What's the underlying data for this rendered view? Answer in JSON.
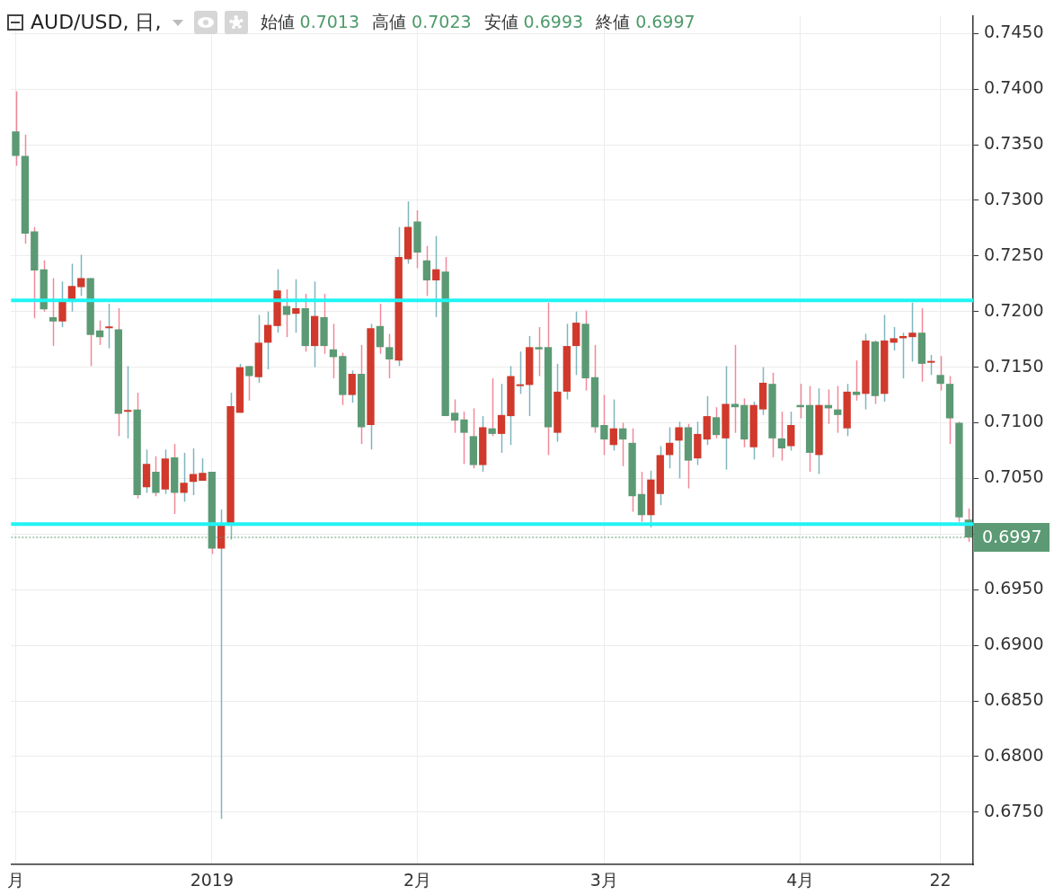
{
  "chart_data": {
    "type": "candlestick",
    "title": "AUD/USD, 日,",
    "annotations": [
      "始値 0.7013",
      "高値 0.7023",
      "安値 0.6993",
      "終値 0.6997"
    ],
    "categories": [
      "月",
      null,
      null,
      null,
      null,
      null,
      null,
      null,
      null,
      null,
      null,
      null,
      null,
      null,
      null,
      null,
      null,
      null,
      null,
      null,
      null,
      "2019",
      null,
      null,
      null,
      null,
      null,
      null,
      null,
      null,
      null,
      null,
      null,
      null,
      null,
      null,
      null,
      null,
      null,
      null,
      null,
      null,
      null,
      "2月",
      null,
      null,
      null,
      null,
      null,
      null,
      null,
      null,
      null,
      null,
      null,
      null,
      null,
      null,
      null,
      null,
      null,
      null,
      null,
      "3月",
      null,
      null,
      null,
      null,
      null,
      null,
      null,
      null,
      null,
      null,
      null,
      null,
      null,
      null,
      null,
      null,
      null,
      null,
      null,
      null,
      "4月",
      null,
      null,
      null,
      null,
      null,
      null,
      null,
      null,
      null,
      null,
      null,
      null,
      null,
      null,
      "22",
      null,
      null,
      null
    ],
    "ohlc": [
      [
        0.7362,
        0.7398,
        0.7331,
        0.734
      ],
      [
        0.734,
        0.7359,
        0.7261,
        0.727
      ],
      [
        0.7272,
        0.7276,
        0.7194,
        0.7237
      ],
      [
        0.7238,
        0.7246,
        0.72,
        0.7202
      ],
      [
        0.7195,
        0.723,
        0.7169,
        0.7191
      ],
      [
        0.7191,
        0.7227,
        0.7186,
        0.721
      ],
      [
        0.7211,
        0.7243,
        0.72,
        0.7223
      ],
      [
        0.7222,
        0.7251,
        0.7214,
        0.723
      ],
      [
        0.723,
        0.723,
        0.7151,
        0.7179
      ],
      [
        0.7183,
        0.7192,
        0.717,
        0.7177
      ],
      [
        0.7185,
        0.7207,
        0.7167,
        0.7185
      ],
      [
        0.7184,
        0.7203,
        0.7088,
        0.7108
      ],
      [
        0.711,
        0.7151,
        0.7086,
        0.711
      ],
      [
        0.7112,
        0.7127,
        0.7032,
        0.7035
      ],
      [
        0.7042,
        0.7076,
        0.7037,
        0.7063
      ],
      [
        0.7056,
        0.707,
        0.7034,
        0.7037
      ],
      [
        0.704,
        0.7076,
        0.7036,
        0.7068
      ],
      [
        0.7069,
        0.7081,
        0.7018,
        0.7037
      ],
      [
        0.7037,
        0.7073,
        0.7029,
        0.7046
      ],
      [
        0.7047,
        0.7077,
        0.7035,
        0.7054
      ],
      [
        0.7048,
        0.7068,
        0.7048,
        0.7055
      ],
      [
        0.7056,
        0.7056,
        0.6982,
        0.6987
      ],
      [
        0.6987,
        0.7022,
        0.6744,
        0.7008
      ],
      [
        0.7008,
        0.7127,
        0.6995,
        0.7115
      ],
      [
        0.7109,
        0.7153,
        0.7109,
        0.715
      ],
      [
        0.7151,
        0.7151,
        0.712,
        0.7142
      ],
      [
        0.7141,
        0.7197,
        0.7136,
        0.7172
      ],
      [
        0.7172,
        0.72,
        0.7148,
        0.7188
      ],
      [
        0.7187,
        0.7238,
        0.7181,
        0.7219
      ],
      [
        0.7205,
        0.722,
        0.7177,
        0.7197
      ],
      [
        0.7198,
        0.7229,
        0.7181,
        0.7203
      ],
      [
        0.7203,
        0.7216,
        0.7164,
        0.7169
      ],
      [
        0.7169,
        0.7227,
        0.715,
        0.7196
      ],
      [
        0.7195,
        0.7216,
        0.7162,
        0.7169
      ],
      [
        0.7166,
        0.7189,
        0.714,
        0.7159
      ],
      [
        0.716,
        0.7163,
        0.7116,
        0.7125
      ],
      [
        0.7125,
        0.7147,
        0.7118,
        0.7144
      ],
      [
        0.7144,
        0.717,
        0.7081,
        0.7096
      ],
      [
        0.7098,
        0.7189,
        0.7076,
        0.7185
      ],
      [
        0.7187,
        0.7207,
        0.7162,
        0.7168
      ],
      [
        0.7168,
        0.718,
        0.714,
        0.7157
      ],
      [
        0.7156,
        0.7276,
        0.7151,
        0.7249
      ],
      [
        0.7247,
        0.7299,
        0.7243,
        0.7276
      ],
      [
        0.7281,
        0.7291,
        0.7239,
        0.7253
      ],
      [
        0.7246,
        0.7259,
        0.7214,
        0.7228
      ],
      [
        0.7228,
        0.7268,
        0.7195,
        0.7238
      ],
      [
        0.7236,
        0.7249,
        0.7106,
        0.7106
      ],
      [
        0.7109,
        0.7121,
        0.7091,
        0.7102
      ],
      [
        0.7103,
        0.711,
        0.7063,
        0.7091
      ],
      [
        0.7088,
        0.7113,
        0.7059,
        0.7062
      ],
      [
        0.7062,
        0.7106,
        0.7056,
        0.7096
      ],
      [
        0.7095,
        0.714,
        0.7088,
        0.709
      ],
      [
        0.709,
        0.7135,
        0.7073,
        0.7107
      ],
      [
        0.7106,
        0.7151,
        0.708,
        0.7142
      ],
      [
        0.7133,
        0.7164,
        0.7126,
        0.7133
      ],
      [
        0.7134,
        0.7178,
        0.7106,
        0.7168
      ],
      [
        0.7168,
        0.7186,
        0.7142,
        0.7166
      ],
      [
        0.7168,
        0.7208,
        0.7071,
        0.7096
      ],
      [
        0.7091,
        0.7153,
        0.7083,
        0.7128
      ],
      [
        0.7128,
        0.7189,
        0.7121,
        0.7169
      ],
      [
        0.7169,
        0.72,
        0.7143,
        0.719
      ],
      [
        0.7189,
        0.7201,
        0.7129,
        0.714
      ],
      [
        0.7141,
        0.717,
        0.7091,
        0.7096
      ],
      [
        0.7098,
        0.7125,
        0.7071,
        0.7085
      ],
      [
        0.708,
        0.7121,
        0.7075,
        0.7095
      ],
      [
        0.7095,
        0.71,
        0.7061,
        0.7085
      ],
      [
        0.7082,
        0.7095,
        0.702,
        0.7034
      ],
      [
        0.7036,
        0.7056,
        0.7011,
        0.7017
      ],
      [
        0.7017,
        0.7057,
        0.7006,
        0.7049
      ],
      [
        0.7036,
        0.7079,
        0.7026,
        0.7071
      ],
      [
        0.7071,
        0.7096,
        0.7059,
        0.7082
      ],
      [
        0.7084,
        0.7101,
        0.705,
        0.7096
      ],
      [
        0.7096,
        0.7099,
        0.7041,
        0.7066
      ],
      [
        0.7068,
        0.7101,
        0.7062,
        0.709
      ],
      [
        0.7085,
        0.7124,
        0.708,
        0.7106
      ],
      [
        0.7105,
        0.7114,
        0.7086,
        0.7089
      ],
      [
        0.7086,
        0.7151,
        0.7058,
        0.7117
      ],
      [
        0.7117,
        0.717,
        0.7091,
        0.7114
      ],
      [
        0.7116,
        0.7122,
        0.7078,
        0.7085
      ],
      [
        0.7078,
        0.7119,
        0.7067,
        0.7116
      ],
      [
        0.7112,
        0.715,
        0.7107,
        0.7136
      ],
      [
        0.7135,
        0.7145,
        0.7069,
        0.7086
      ],
      [
        0.7086,
        0.711,
        0.7066,
        0.7077
      ],
      [
        0.7079,
        0.711,
        0.7075,
        0.7098
      ],
      [
        0.7116,
        0.7135,
        0.7104,
        0.7114
      ],
      [
        0.7116,
        0.7133,
        0.7056,
        0.7073
      ],
      [
        0.7071,
        0.7131,
        0.7054,
        0.7116
      ],
      [
        0.7116,
        0.713,
        0.7099,
        0.7113
      ],
      [
        0.7112,
        0.7133,
        0.7091,
        0.7107
      ],
      [
        0.7095,
        0.7135,
        0.7088,
        0.7128
      ],
      [
        0.7128,
        0.7156,
        0.712,
        0.7125
      ],
      [
        0.7126,
        0.718,
        0.7112,
        0.7174
      ],
      [
        0.7173,
        0.7174,
        0.7117,
        0.7124
      ],
      [
        0.7126,
        0.7197,
        0.7119,
        0.7174
      ],
      [
        0.7172,
        0.7186,
        0.7165,
        0.7176
      ],
      [
        0.7176,
        0.7181,
        0.714,
        0.7178
      ],
      [
        0.7177,
        0.7208,
        0.7155,
        0.7181
      ],
      [
        0.7181,
        0.7203,
        0.7137,
        0.7153
      ],
      [
        0.7154,
        0.7161,
        0.7143,
        0.7154
      ],
      [
        0.7143,
        0.716,
        0.7129,
        0.7135
      ],
      [
        0.7135,
        0.7142,
        0.7081,
        0.7104
      ],
      [
        0.71,
        0.7101,
        0.7011,
        0.7015
      ],
      [
        0.7013,
        0.7023,
        0.6993,
        0.6997
      ]
    ],
    "colors": [
      "#5b9a74",
      "#5b9a74",
      "#5b9a74",
      "#5b9a74",
      "#5b9a74",
      "#d0392b",
      "#d0392b",
      "#d0392b",
      "#5b9a74",
      "#5b9a74",
      "#d0392b",
      "#5b9a74",
      "#d0392b",
      "#5b9a74",
      "#d0392b",
      "#5b9a74",
      "#d0392b",
      "#5b9a74",
      "#d0392b",
      "#d0392b",
      "#d0392b",
      "#5b9a74",
      "#d0392b",
      "#d0392b",
      "#d0392b",
      "#5b9a74",
      "#d0392b",
      "#d0392b",
      "#d0392b",
      "#5b9a74",
      "#d0392b",
      "#5b9a74",
      "#d0392b",
      "#5b9a74",
      "#5b9a74",
      "#5b9a74",
      "#d0392b",
      "#5b9a74",
      "#d0392b",
      "#5b9a74",
      "#5b9a74",
      "#d0392b",
      "#d0392b",
      "#5b9a74",
      "#5b9a74",
      "#d0392b",
      "#5b9a74",
      "#5b9a74",
      "#5b9a74",
      "#5b9a74",
      "#d0392b",
      "#5b9a74",
      "#d0392b",
      "#d0392b",
      "#d0392b",
      "#d0392b",
      "#5b9a74",
      "#5b9a74",
      "#d0392b",
      "#d0392b",
      "#d0392b",
      "#5b9a74",
      "#5b9a74",
      "#5b9a74",
      "#d0392b",
      "#5b9a74",
      "#5b9a74",
      "#5b9a74",
      "#d0392b",
      "#d0392b",
      "#d0392b",
      "#d0392b",
      "#5b9a74",
      "#d0392b",
      "#d0392b",
      "#5b9a74",
      "#d0392b",
      "#5b9a74",
      "#5b9a74",
      "#d0392b",
      "#d0392b",
      "#5b9a74",
      "#5b9a74",
      "#d0392b",
      "#5b9a74",
      "#5b9a74",
      "#d0392b",
      "#5b9a74",
      "#5b9a74",
      "#d0392b",
      "#5b9a74",
      "#d0392b",
      "#5b9a74",
      "#d0392b",
      "#d0392b",
      "#d0392b",
      "#d0392b",
      "#5b9a74",
      "#d0392b",
      "#5b9a74",
      "#5b9a74",
      "#5b9a74",
      "#5b9a74"
    ],
    "ylim": [
      0.6703,
      0.7466
    ],
    "yticks": [
      {
        "value": 0.675,
        "label": "0.6750"
      },
      {
        "value": 0.68,
        "label": "0.6800"
      },
      {
        "value": 0.685,
        "label": "0.6850"
      },
      {
        "value": 0.69,
        "label": "0.6900"
      },
      {
        "value": 0.695,
        "label": "0.6950"
      },
      {
        "value": 0.7,
        "label": null
      },
      {
        "value": 0.705,
        "label": "0.7050"
      },
      {
        "value": 0.71,
        "label": "0.7100"
      },
      {
        "value": 0.715,
        "label": "0.7150"
      },
      {
        "value": 0.72,
        "label": "0.7200"
      },
      {
        "value": 0.725,
        "label": "0.7250"
      },
      {
        "value": 0.73,
        "label": "0.7300"
      },
      {
        "value": 0.735,
        "label": "0.7350"
      },
      {
        "value": 0.74,
        "label": "0.7400"
      },
      {
        "value": 0.745,
        "label": "0.7450"
      }
    ],
    "ref_lines": [
      {
        "axis": "y",
        "value": 0.721,
        "color": "#1ff4f4"
      },
      {
        "axis": "y",
        "value": 0.7009,
        "color": "#1ff4f4"
      },
      {
        "axis": "y",
        "value": 0.6997,
        "label": "0.6997",
        "color": "#5b9a74",
        "line_style": "dotted"
      }
    ],
    "grid": true
  }
}
